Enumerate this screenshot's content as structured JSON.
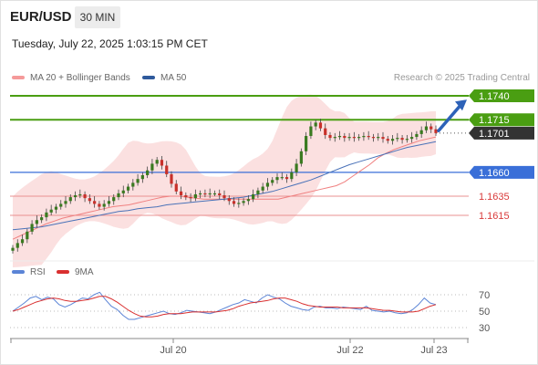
{
  "header": {
    "pair": "EUR/USD",
    "timeframe": "30 MIN"
  },
  "datetime": "Tuesday, July 22, 2025 1:03:15 PM CET",
  "legend": {
    "bb_label": "MA 20 + Bollinger Bands",
    "ma50_label": "MA 50",
    "credit": "Research © 2025 Trading Central"
  },
  "rsi_legend": {
    "rsi_label": "RSI",
    "ma9_label": "9MA"
  },
  "colors": {
    "resistance": "#4a9e12",
    "support_main": "#3a6fd8",
    "support_minor": "#d93a3a",
    "last_price": "#333333",
    "bull_candle": "#3a7a20",
    "bear_candle": "#c8302a",
    "bb_fill": "#fadada",
    "ma20": "#f08080",
    "ma50": "#4a72b8",
    "rsi": "#5b84d6",
    "rsi_ma": "#d93030"
  },
  "chart_data": [
    {
      "type": "candlestick",
      "ylim": [
        1.157,
        1.176
      ],
      "x_ticks": [
        "Jul 20",
        "Jul 22",
        "Jul 23"
      ],
      "price_levels": [
        {
          "value": 1.174,
          "label": "1.1740",
          "kind": "resistance"
        },
        {
          "value": 1.1715,
          "label": "1.1715",
          "kind": "resistance"
        },
        {
          "value": 1.1701,
          "label": "1.1701",
          "kind": "last"
        },
        {
          "value": 1.166,
          "label": "1.1660",
          "kind": "support_main"
        },
        {
          "value": 1.1635,
          "label": "1.1635",
          "kind": "support_minor"
        },
        {
          "value": 1.1615,
          "label": "1.1615",
          "kind": "support_minor"
        }
      ],
      "close": [
        1.1581,
        1.1586,
        1.159,
        1.1598,
        1.1606,
        1.161,
        1.1613,
        1.1618,
        1.1621,
        1.1624,
        1.1627,
        1.163,
        1.1634,
        1.1636,
        1.1637,
        1.1633,
        1.163,
        1.1627,
        1.1624,
        1.1627,
        1.163,
        1.1634,
        1.1638,
        1.1641,
        1.1645,
        1.1649,
        1.1653,
        1.1657,
        1.1662,
        1.1669,
        1.1673,
        1.1667,
        1.1658,
        1.1648,
        1.164,
        1.1636,
        1.1634,
        1.1633,
        1.1637,
        1.1638,
        1.1637,
        1.1638,
        1.1638,
        1.1636,
        1.1633,
        1.163,
        1.1627,
        1.1628,
        1.163,
        1.1632,
        1.1637,
        1.1641,
        1.1645,
        1.1649,
        1.1652,
        1.1655,
        1.1655,
        1.1653,
        1.166,
        1.1669,
        1.1682,
        1.1698,
        1.1708,
        1.1712,
        1.1706,
        1.1699,
        1.1696,
        1.1697,
        1.1698,
        1.1696,
        1.1697,
        1.1696,
        1.1697,
        1.1698,
        1.1697,
        1.1696,
        1.1697,
        1.1695,
        1.1693,
        1.1695,
        1.1696,
        1.1694,
        1.1695,
        1.1697,
        1.17,
        1.1704,
        1.1708,
        1.1705,
        1.1701
      ],
      "ma20": [
        1.159,
        1.1594,
        1.1598,
        1.1602,
        1.1606,
        1.1609,
        1.1612,
        1.1614,
        1.1616,
        1.1618,
        1.162,
        1.1622,
        1.1624,
        1.1625,
        1.1626,
        1.1628,
        1.163,
        1.1632,
        1.1634,
        1.1635,
        1.1635,
        1.1634,
        1.1633,
        1.1632,
        1.1632,
        1.1632,
        1.1632,
        1.1632,
        1.1632,
        1.1632,
        1.1632,
        1.1632,
        1.1632,
        1.1634,
        1.1636,
        1.1638,
        1.164,
        1.1642,
        1.1644,
        1.1646,
        1.165,
        1.1656,
        1.1662,
        1.1668,
        1.1675,
        1.168,
        1.1684,
        1.1687,
        1.169,
        1.1693,
        1.1695,
        1.1697
      ],
      "ma50": [
        1.16,
        1.1601,
        1.1602,
        1.1603,
        1.1605,
        1.1607,
        1.1609,
        1.1611,
        1.1613,
        1.1615,
        1.1617,
        1.1619,
        1.162,
        1.1622,
        1.1623,
        1.1624,
        1.1626,
        1.1627,
        1.1628,
        1.1629,
        1.163,
        1.1631,
        1.1632,
        1.1633,
        1.1634,
        1.1636,
        1.1638,
        1.164,
        1.1643,
        1.1646,
        1.1649,
        1.1652,
        1.1656,
        1.166,
        1.1664,
        1.1668,
        1.1671,
        1.1674,
        1.1677,
        1.168,
        1.1683,
        1.1686,
        1.1688,
        1.169,
        1.1692
      ]
    },
    {
      "type": "line",
      "title": "RSI",
      "ylim": [
        20,
        80
      ],
      "y_ticks": [
        70,
        50,
        30
      ],
      "rsi": [
        50,
        55,
        60,
        66,
        68,
        64,
        67,
        65,
        58,
        55,
        58,
        62,
        66,
        65,
        70,
        73,
        64,
        56,
        52,
        45,
        40,
        40,
        42,
        44,
        46,
        48,
        50,
        47,
        46,
        48,
        51,
        50,
        49,
        48,
        47,
        49,
        52,
        55,
        58,
        60,
        64,
        62,
        60,
        66,
        70,
        67,
        65,
        60,
        56,
        54,
        52,
        51,
        55,
        56,
        54,
        54,
        53,
        55,
        54,
        53,
        52,
        56,
        51,
        50,
        49,
        50,
        48,
        47,
        48,
        52,
        58,
        66,
        60,
        58
      ],
      "rsi_ma": [
        50,
        52,
        55,
        58,
        61,
        63,
        65,
        66,
        65,
        63,
        62,
        62,
        63,
        64,
        66,
        68,
        68,
        65,
        61,
        56,
        51,
        47,
        44,
        43,
        43,
        44,
        46,
        47,
        47,
        47,
        48,
        49,
        49,
        49,
        49,
        49,
        50,
        51,
        53,
        56,
        58,
        60,
        61,
        62,
        63,
        65,
        66,
        66,
        64,
        62,
        59,
        57,
        56,
        55,
        55,
        55,
        55,
        54,
        54,
        54,
        54,
        54,
        53,
        52,
        51,
        51,
        50,
        49,
        49,
        49,
        50,
        53,
        56,
        58
      ]
    }
  ]
}
